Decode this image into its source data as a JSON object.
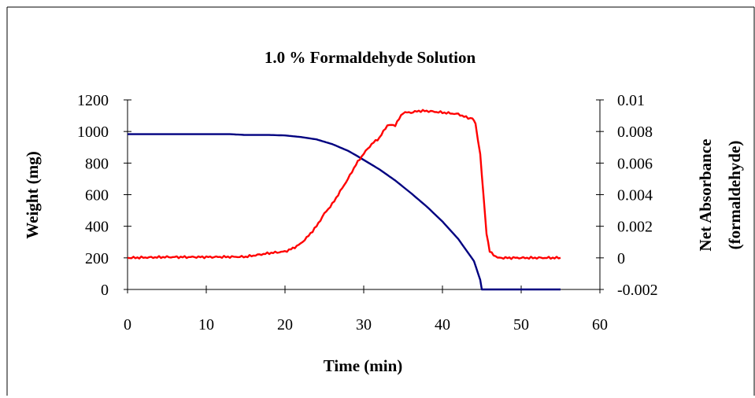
{
  "chart_data": {
    "type": "line",
    "title": "1.0 % Formaldehyde Solution",
    "xlabel": "Time (min)",
    "ylabel": "Weight (mg)",
    "y2label_line1": "Net Absorbance",
    "y2label_line2": "(formaldehyde)",
    "xlim": [
      0,
      60
    ],
    "ylim": [
      0,
      1200
    ],
    "y2lim": [
      -0.002,
      0.01
    ],
    "xticks": [
      0,
      10,
      20,
      30,
      40,
      50,
      60
    ],
    "yticks": [
      0,
      200,
      400,
      600,
      800,
      1000,
      1200
    ],
    "y2ticks": [
      -0.002,
      0,
      0.002,
      0.004,
      0.006,
      0.008,
      0.01
    ],
    "xtick_labels": [
      "0",
      "10",
      "20",
      "30",
      "40",
      "50",
      "60"
    ],
    "ytick_labels": [
      "0",
      "200",
      "400",
      "600",
      "800",
      "1000",
      "1200"
    ],
    "y2tick_labels": [
      "-0.002",
      "0",
      "0.002",
      "0.004",
      "0.006",
      "0.008",
      "0.01"
    ],
    "grid": false,
    "legend": "none",
    "series": [
      {
        "axis": "left",
        "color": "#000080",
        "x": [
          0,
          5,
          10,
          13,
          15,
          18,
          20,
          22,
          24,
          26,
          28,
          29,
          30,
          32,
          34,
          36,
          38,
          40,
          42,
          44,
          44.8,
          45,
          50,
          55
        ],
        "y": [
          983,
          983,
          983,
          983,
          978,
          978,
          975,
          965,
          950,
          920,
          878,
          850,
          820,
          760,
          690,
          610,
          525,
          430,
          320,
          180,
          60,
          0,
          0,
          0
        ]
      },
      {
        "axis": "right",
        "color": "#ff0000",
        "x": [
          0,
          5,
          10,
          15,
          18,
          20,
          21,
          22,
          23,
          24,
          25,
          26,
          27,
          28,
          29,
          30,
          31,
          32,
          33,
          34,
          35,
          36,
          37,
          38,
          40,
          42,
          43,
          43.8,
          44.2,
          44.8,
          45.2,
          45.6,
          46,
          47,
          48,
          50,
          55
        ],
        "y": [
          0,
          5e-05,
          5e-05,
          7e-05,
          0.0003,
          0.0004,
          0.0006,
          0.0009,
          0.0014,
          0.002,
          0.0028,
          0.0034,
          0.0042,
          0.005,
          0.0059,
          0.0066,
          0.0072,
          0.0076,
          0.0084,
          0.0084,
          0.0092,
          0.0092,
          0.0093,
          0.0093,
          0.0092,
          0.0091,
          0.0089,
          0.0088,
          0.0085,
          0.0065,
          0.004,
          0.0015,
          0.0004,
          0,
          0,
          0,
          0
        ]
      }
    ]
  }
}
